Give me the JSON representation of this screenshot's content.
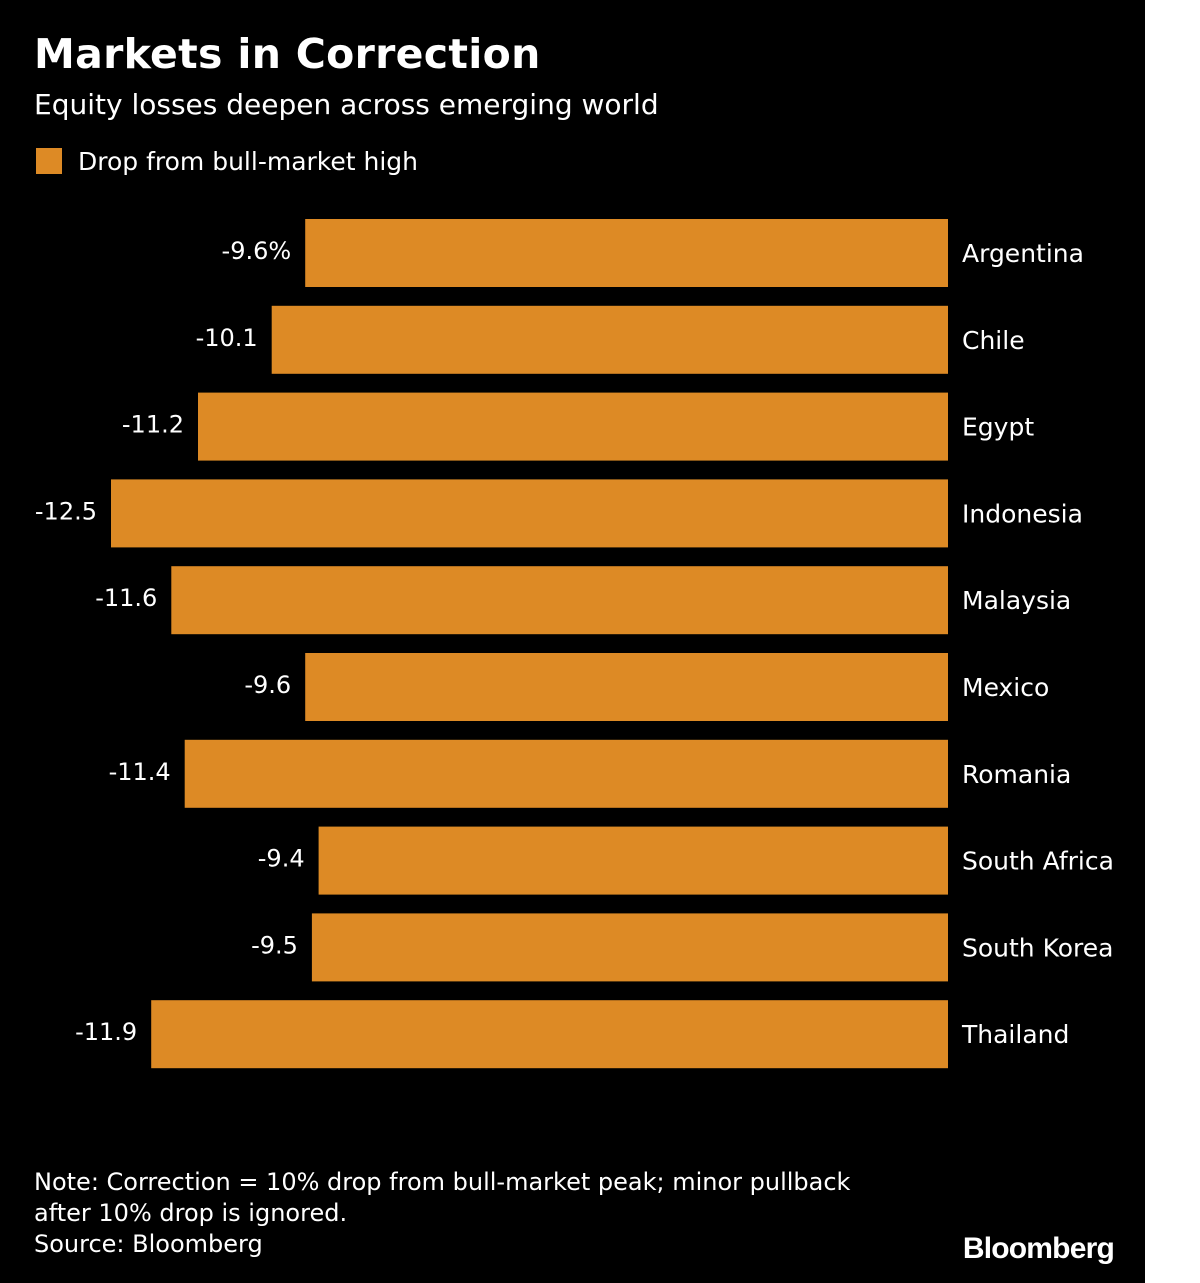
{
  "title": "Markets in Correction",
  "subtitle": "Equity losses deepen across emerging world",
  "legend": {
    "label": "Drop from bull-market high",
    "color": "#DD8A25"
  },
  "note": [
    "Note: Correction = 10% drop from bull-market peak; minor pullback",
    "after 10% drop is ignored."
  ],
  "source": "Source: Bloomberg",
  "logo": "Bloomberg",
  "colors": {
    "background": "#000000",
    "bar": "#DD8A25",
    "text": "#FFFFFF"
  },
  "chart_data": {
    "type": "bar",
    "orientation": "horizontal",
    "title": "Markets in Correction",
    "subtitle": "Equity losses deepen across emerging world",
    "categories": [
      "Argentina",
      "Chile",
      "Egypt",
      "Indonesia",
      "Malaysia",
      "Mexico",
      "Romania",
      "South Africa",
      "South Korea",
      "Thailand"
    ],
    "values": [
      -9.6,
      -10.1,
      -11.2,
      -12.5,
      -11.6,
      -9.6,
      -11.4,
      -9.4,
      -9.5,
      -11.9
    ],
    "value_labels": [
      "-9.6%",
      "-10.1",
      "-11.2",
      "-12.5",
      "-11.6",
      "-9.6",
      "-11.4",
      "-9.4",
      "-9.5",
      "-11.9"
    ],
    "series": [
      {
        "name": "Drop from bull-market high",
        "values": [
          -9.6,
          -10.1,
          -11.2,
          -12.5,
          -11.6,
          -9.6,
          -11.4,
          -9.4,
          -9.5,
          -11.9
        ]
      }
    ],
    "unit": "%",
    "xlim": [
      -12.5,
      0
    ],
    "grid": false,
    "legend_position": "top-left"
  }
}
